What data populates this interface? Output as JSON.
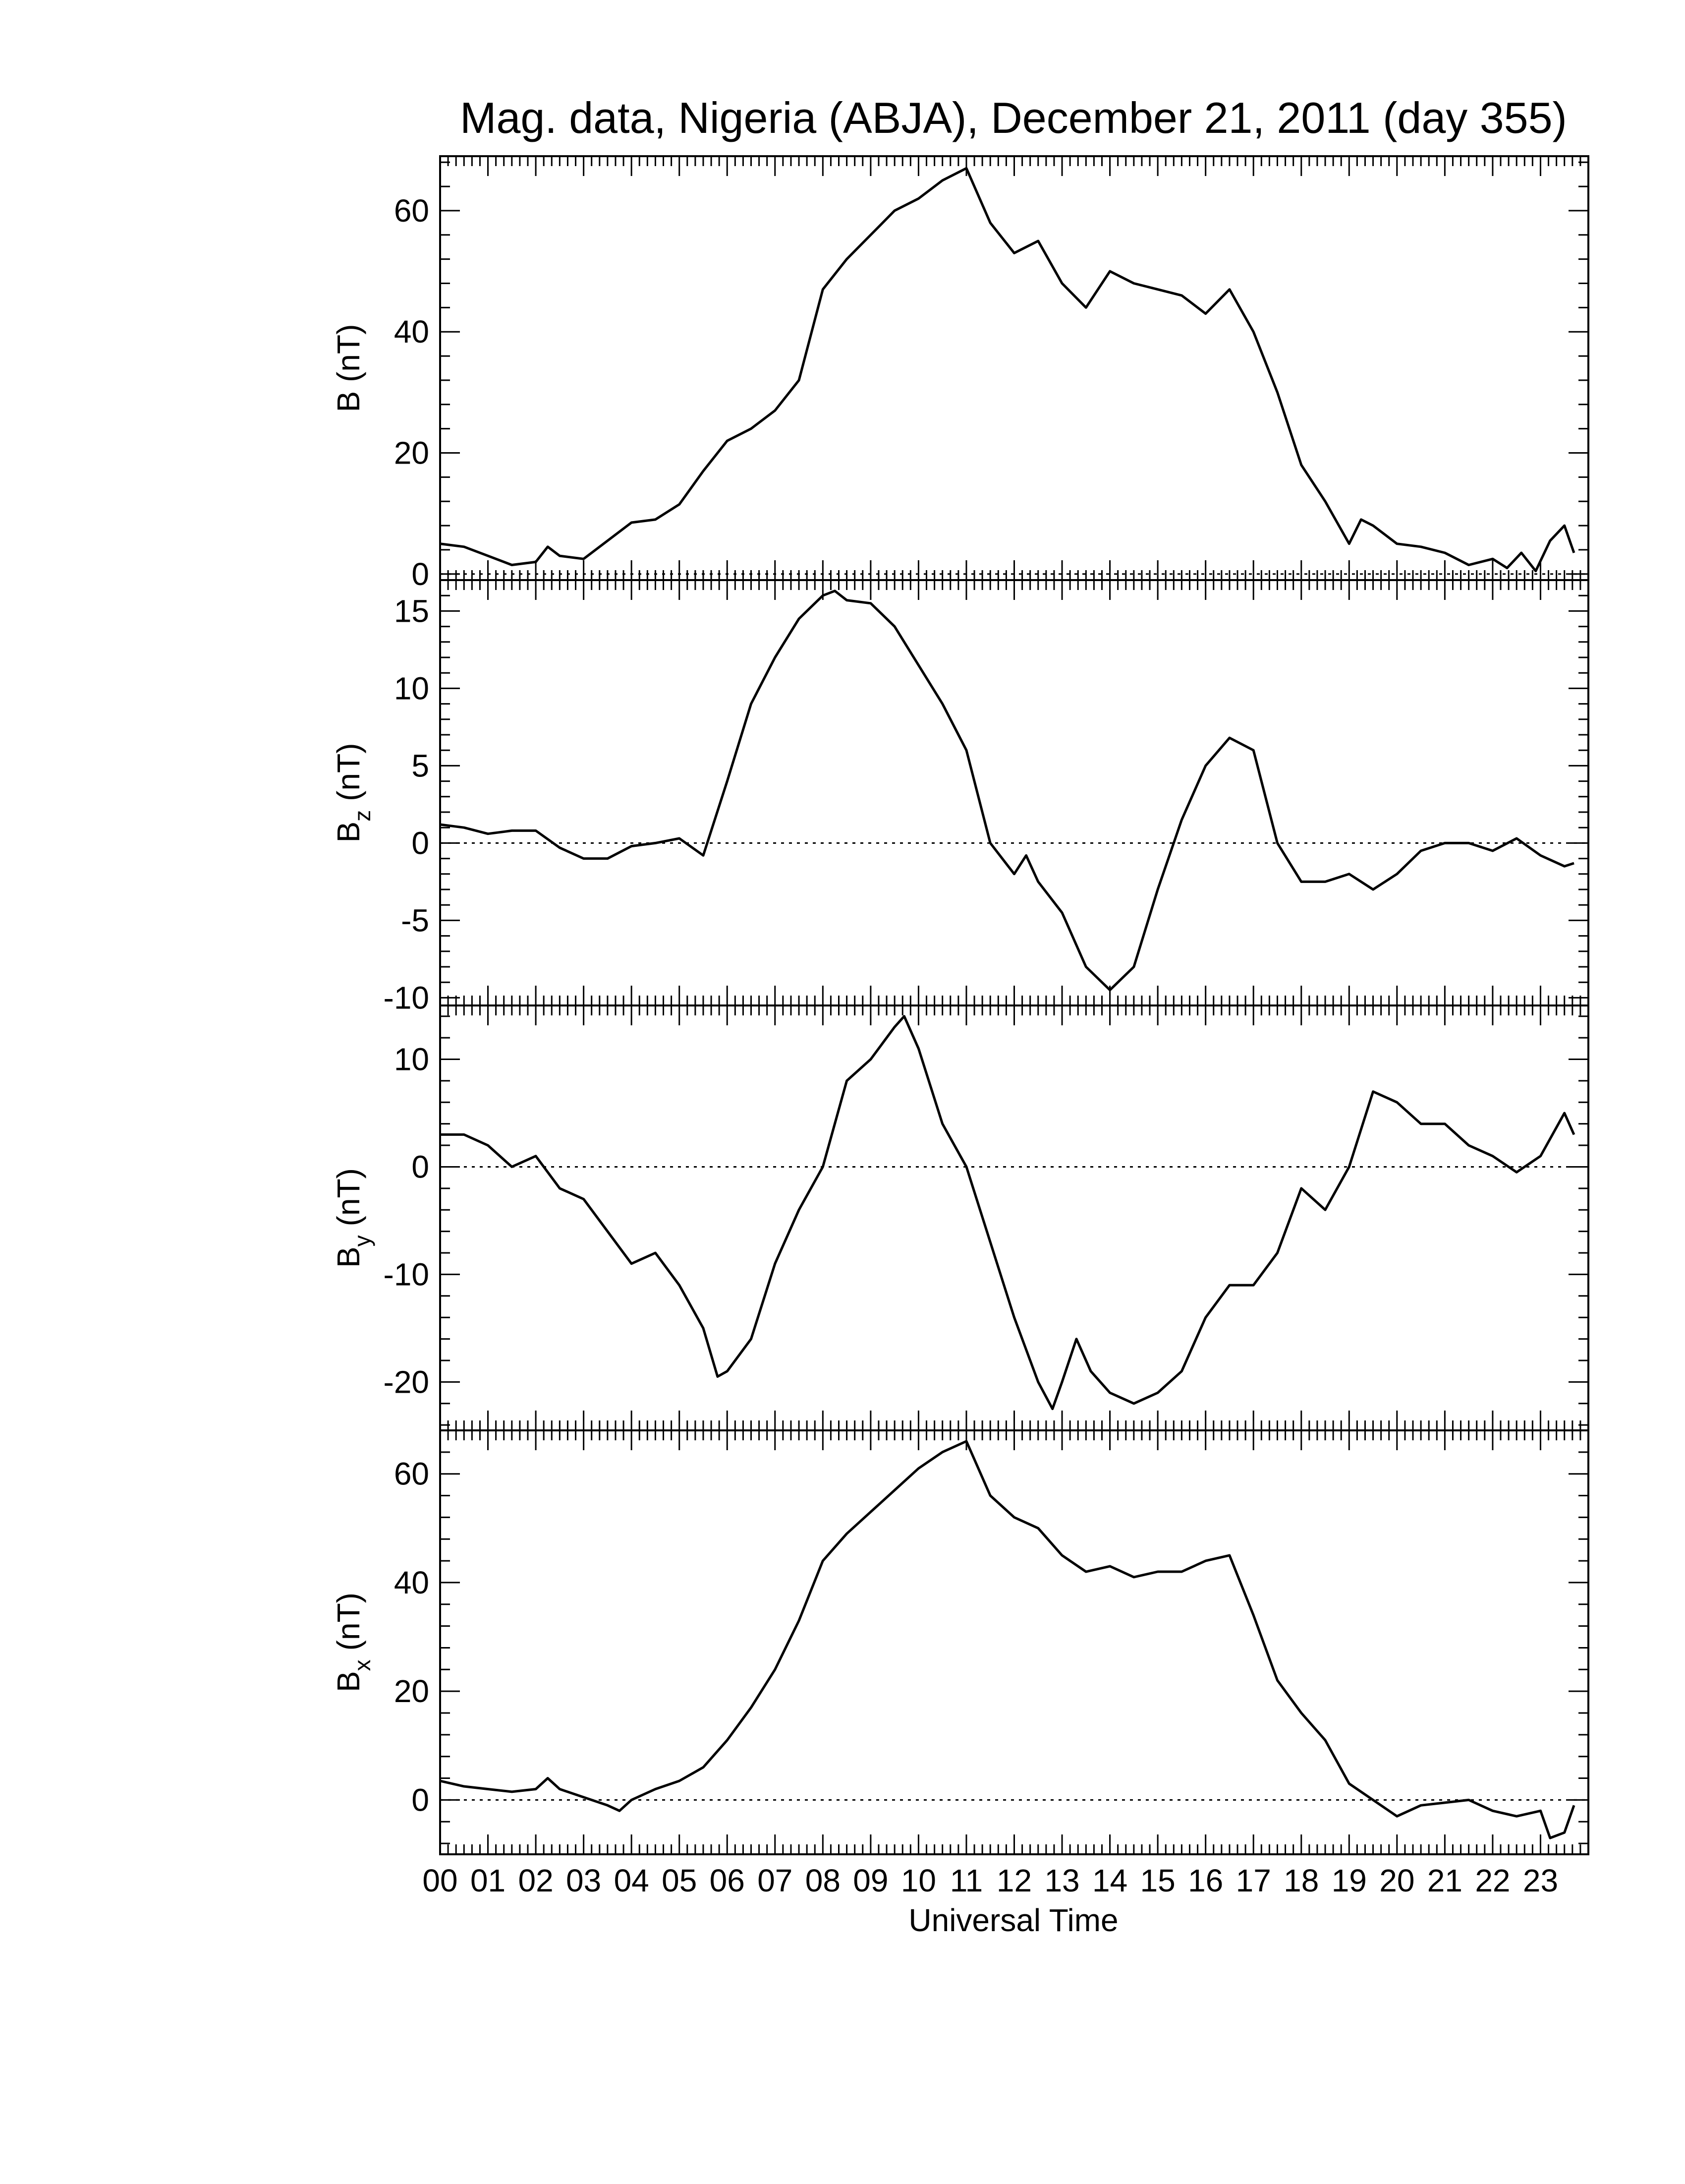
{
  "title": "Mag. data, Nigeria (ABJA), December 21, 2011 (day 355)",
  "chart_data": [
    {
      "type": "line",
      "ylabel": "B (nT)",
      "ylabel_sub": "",
      "ylim": [
        -1,
        69
      ],
      "yticks": [
        0,
        20,
        40,
        60
      ],
      "zero_line": true,
      "x": [
        0,
        0.5,
        1,
        1.5,
        2,
        2.25,
        2.5,
        3,
        3.5,
        4,
        4.5,
        5,
        5.5,
        6,
        6.5,
        7,
        7.5,
        8,
        8.5,
        9,
        9.5,
        10,
        10.5,
        11,
        11.5,
        12,
        12.5,
        13,
        13.5,
        14,
        14.5,
        15,
        15.5,
        16,
        16.5,
        17,
        17.5,
        18,
        18.5,
        19,
        19.25,
        19.5,
        20,
        20.5,
        21,
        21.5,
        22,
        22.3,
        22.6,
        22.9,
        23.2,
        23.5,
        23.7
      ],
      "values": [
        5,
        4.5,
        3,
        1.5,
        2,
        4.5,
        3,
        2.5,
        5.5,
        8.5,
        9,
        11.5,
        17,
        22,
        24,
        27,
        32,
        47,
        52,
        56,
        60,
        62,
        65,
        67,
        58,
        53,
        55,
        48,
        44,
        50,
        48,
        47,
        46,
        43,
        47,
        40,
        30,
        18,
        12,
        5,
        9,
        8,
        5,
        4.5,
        3.5,
        1.5,
        2.5,
        1,
        3.5,
        0.5,
        5.5,
        8,
        3.5
      ]
    },
    {
      "type": "line",
      "ylabel": "B",
      "ylabel_sub": "z",
      "ylabel_unit": "(nT)",
      "ylim": [
        -10.5,
        17
      ],
      "yticks": [
        -10,
        -5,
        0,
        5,
        10,
        15
      ],
      "ytick_labels": [
        "-10",
        "-5",
        "0",
        "5",
        "10",
        "15"
      ],
      "zero_line": true,
      "x": [
        0,
        0.5,
        1,
        1.5,
        2,
        2.5,
        3,
        3.5,
        4,
        4.5,
        5,
        5.5,
        6,
        6.5,
        7,
        7.5,
        8,
        8.25,
        8.5,
        9,
        9.5,
        10,
        10.5,
        11,
        11.5,
        12,
        12.25,
        12.5,
        13,
        13.5,
        14,
        14.5,
        15,
        15.5,
        16,
        16.5,
        17,
        17.5,
        18,
        18.5,
        19,
        19.5,
        20,
        20.5,
        21,
        21.5,
        22,
        22.5,
        23,
        23.5,
        23.7
      ],
      "values": [
        1.2,
        1,
        0.6,
        0.8,
        0.8,
        -0.3,
        -1,
        -1,
        -0.2,
        0,
        0.3,
        -0.8,
        4,
        9,
        12,
        14.5,
        16,
        16.3,
        15.7,
        15.5,
        14,
        11.5,
        9,
        6,
        0,
        -2,
        -0.8,
        -2.5,
        -4.5,
        -8,
        -9.5,
        -8,
        -3,
        1.5,
        5,
        6.8,
        6,
        0,
        -2.5,
        -2.5,
        -2,
        -3,
        -2,
        -0.5,
        0,
        0,
        -0.5,
        0.3,
        -0.8,
        -1.5,
        -1.3
      ]
    },
    {
      "type": "line",
      "ylabel": "B",
      "ylabel_sub": "y",
      "ylabel_unit": "(nT)",
      "ylim": [
        -24.5,
        15
      ],
      "yticks": [
        -20,
        -10,
        0,
        10
      ],
      "ytick_labels": [
        "-20",
        "-10",
        "0",
        "10"
      ],
      "zero_line": true,
      "x": [
        0,
        0.5,
        1,
        1.5,
        2,
        2.5,
        3,
        3.5,
        4,
        4.5,
        5,
        5.5,
        5.8,
        6,
        6.5,
        7,
        7.5,
        8,
        8.5,
        9,
        9.5,
        9.7,
        10,
        10.5,
        11,
        11.5,
        12,
        12.5,
        12.8,
        13,
        13.3,
        13.6,
        14,
        14.5,
        15,
        15.5,
        16,
        16.5,
        17,
        17.5,
        18,
        18.5,
        19,
        19.5,
        20,
        20.5,
        21,
        21.5,
        22,
        22.5,
        23,
        23.5,
        23.7
      ],
      "values": [
        3,
        3,
        2,
        0,
        1,
        -2,
        -3,
        -6,
        -9,
        -8,
        -11,
        -15,
        -19.5,
        -19,
        -16,
        -9,
        -4,
        0,
        8,
        10,
        13,
        14,
        11,
        4,
        0,
        -7,
        -14,
        -20,
        -22.5,
        -20,
        -16,
        -19,
        -21,
        -22,
        -21,
        -19,
        -14,
        -11,
        -11,
        -8,
        -2,
        -4,
        0,
        7,
        6,
        4,
        4,
        2,
        1,
        -0.5,
        1,
        5,
        3
      ]
    },
    {
      "type": "line",
      "ylabel": "B",
      "ylabel_sub": "x",
      "ylabel_unit": "(nT)",
      "ylim": [
        -10,
        68
      ],
      "yticks": [
        0,
        20,
        40,
        60
      ],
      "zero_line": true,
      "x": [
        0,
        0.5,
        1,
        1.5,
        2,
        2.25,
        2.5,
        3,
        3.5,
        3.75,
        4,
        4.5,
        5,
        5.5,
        6,
        6.5,
        7,
        7.5,
        8,
        8.5,
        9,
        9.5,
        10,
        10.5,
        11,
        11.5,
        12,
        12.5,
        13,
        13.5,
        14,
        14.5,
        15,
        15.5,
        16,
        16.5,
        17,
        17.5,
        18,
        18.5,
        19,
        19.5,
        20,
        20.5,
        21,
        21.5,
        22,
        22.5,
        23,
        23.2,
        23.5,
        23.7
      ],
      "values": [
        3.5,
        2.5,
        2,
        1.5,
        2,
        4,
        2,
        0.5,
        -1,
        -2,
        0,
        2,
        3.5,
        6,
        11,
        17,
        24,
        33,
        44,
        49,
        53,
        57,
        61,
        64,
        66,
        56,
        52,
        50,
        45,
        42,
        43,
        41,
        42,
        42,
        44,
        45,
        34,
        22,
        16,
        11,
        3,
        0,
        -3,
        -1,
        -0.5,
        0,
        -2,
        -3,
        -2,
        -7,
        -6,
        -1
      ]
    }
  ],
  "xaxis": {
    "label": "Universal Time",
    "xlim": [
      0,
      24
    ],
    "tick_labels": [
      "00",
      "01",
      "02",
      "03",
      "04",
      "05",
      "06",
      "07",
      "08",
      "09",
      "10",
      "11",
      "12",
      "13",
      "14",
      "15",
      "16",
      "17",
      "18",
      "19",
      "20",
      "21",
      "22",
      "23"
    ]
  }
}
